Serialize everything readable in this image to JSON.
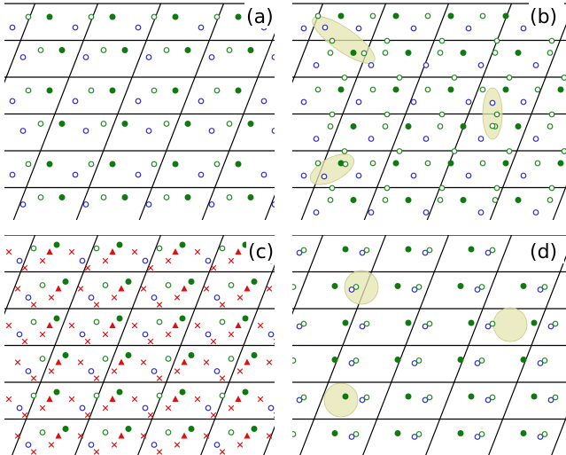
{
  "figure": {
    "panels": [
      {
        "id": "a",
        "label": "(a)",
        "pattern": "lattice-sites",
        "highlights": 0
      },
      {
        "id": "b",
        "label": "(b)",
        "pattern": "lattice-sites-paired",
        "highlights": 3
      },
      {
        "id": "c",
        "label": "(c)",
        "pattern": "lattice-sites-with-triangles-and-crosses",
        "highlights": 0
      },
      {
        "id": "d",
        "label": "(d)",
        "pattern": "lattice-sites-clustered",
        "highlights": 3
      }
    ],
    "marker_legend": {
      "blue_open_circle": "site-type-1",
      "green_open_circle": "site-type-2",
      "green_filled_circle": "site-type-3",
      "red_triangle": "site-type-4",
      "red_cross": "site-type-5"
    },
    "colors": {
      "blue": "#2b2bd6",
      "green": "#1f8a1f",
      "green_fill": "#0f7a0f",
      "red": "#e01010",
      "highlight": "#e6e6b0",
      "line": "#000000"
    }
  }
}
